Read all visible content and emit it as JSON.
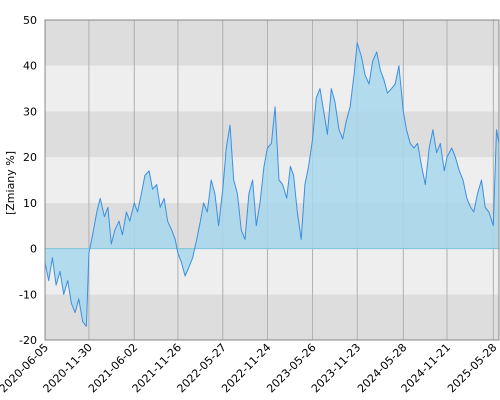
{
  "chart_data": {
    "type": "area",
    "ylabel": "[Zmiany %]",
    "ylim": [
      -20,
      50
    ],
    "yticks": [
      50,
      40,
      30,
      20,
      10,
      0,
      -10,
      -20
    ],
    "xticks": [
      "2020-06-05",
      "2020-11-30",
      "2021-06-02",
      "2021-11-26",
      "2022-05-27",
      "2022-11-24",
      "2023-05-26",
      "2023-11-23",
      "2024-05-28",
      "2024-11-21",
      "2025-05-28"
    ],
    "grid": true,
    "colors": {
      "line": "#3d8fe0",
      "fill": "#a7d8ec",
      "band_light": "#eeeeee",
      "band_dark": "#dddddd",
      "grid": "#b0b0b0"
    },
    "series": [
      {
        "x": [
          "2020-06-05",
          "2020-06-20",
          "2020-07-05",
          "2020-07-20",
          "2020-08-05",
          "2020-08-20",
          "2020-09-05",
          "2020-09-20",
          "2020-10-05",
          "2020-10-20",
          "2020-11-05",
          "2020-11-20",
          "2020-11-30",
          "2020-12-15",
          "2021-01-01",
          "2021-01-15",
          "2021-02-01",
          "2021-02-15",
          "2021-03-01",
          "2021-03-15",
          "2021-04-01",
          "2021-04-15",
          "2021-05-01",
          "2021-05-15",
          "2021-06-02",
          "2021-06-15",
          "2021-07-01",
          "2021-07-15",
          "2021-08-01",
          "2021-08-15",
          "2021-09-01",
          "2021-09-15",
          "2021-10-01",
          "2021-10-15",
          "2021-11-01",
          "2021-11-15",
          "2021-11-26",
          "2021-12-10",
          "2021-12-25",
          "2022-01-10",
          "2022-01-25",
          "2022-02-10",
          "2022-02-25",
          "2022-03-10",
          "2022-03-25",
          "2022-04-10",
          "2022-04-25",
          "2022-05-10",
          "2022-05-27",
          "2022-06-10",
          "2022-06-25",
          "2022-07-10",
          "2022-07-25",
          "2022-08-10",
          "2022-08-25",
          "2022-09-10",
          "2022-09-25",
          "2022-10-10",
          "2022-10-25",
          "2022-11-10",
          "2022-11-24",
          "2022-12-10",
          "2022-12-25",
          "2023-01-10",
          "2023-01-25",
          "2023-02-10",
          "2023-02-25",
          "2023-03-10",
          "2023-03-25",
          "2023-04-10",
          "2023-04-25",
          "2023-05-10",
          "2023-05-26",
          "2023-06-10",
          "2023-06-25",
          "2023-07-10",
          "2023-07-25",
          "2023-08-10",
          "2023-08-25",
          "2023-09-10",
          "2023-09-25",
          "2023-10-10",
          "2023-10-25",
          "2023-11-10",
          "2023-11-23",
          "2023-12-10",
          "2023-12-25",
          "2024-01-10",
          "2024-01-25",
          "2024-02-10",
          "2024-02-25",
          "2024-03-10",
          "2024-03-25",
          "2024-04-10",
          "2024-04-25",
          "2024-05-10",
          "2024-05-28",
          "2024-06-10",
          "2024-06-25",
          "2024-07-10",
          "2024-07-25",
          "2024-08-10",
          "2024-08-25",
          "2024-09-10",
          "2024-09-25",
          "2024-10-10",
          "2024-10-25",
          "2024-11-10",
          "2024-11-21",
          "2024-12-10",
          "2024-12-25",
          "2025-01-10",
          "2025-01-25",
          "2025-02-10",
          "2025-02-25",
          "2025-03-10",
          "2025-03-25",
          "2025-04-10",
          "2025-04-25",
          "2025-05-10",
          "2025-05-28",
          "2025-06-10",
          "2025-06-20"
        ],
        "y": [
          -3,
          -7,
          -2,
          -8,
          -5,
          -10,
          -7,
          -12,
          -14,
          -11,
          -16,
          -17,
          -1,
          3,
          8,
          11,
          7,
          9,
          1,
          4,
          6,
          3,
          8,
          6,
          10,
          8,
          12,
          16,
          17,
          13,
          14,
          9,
          11,
          6,
          4,
          2,
          -1,
          -3,
          -6,
          -4,
          -2,
          2,
          6,
          10,
          8,
          15,
          12,
          5,
          13,
          22,
          27,
          15,
          12,
          4,
          2,
          12,
          15,
          5,
          10,
          18,
          22,
          23,
          31,
          15,
          14,
          11,
          18,
          16,
          8,
          2,
          14,
          18,
          24,
          33,
          35,
          30,
          25,
          35,
          32,
          26,
          24,
          28,
          31,
          38,
          45,
          42,
          38,
          36,
          41,
          43,
          39,
          37,
          34,
          35,
          36,
          40,
          30,
          26,
          23,
          22,
          23,
          18,
          14,
          22,
          26,
          21,
          23,
          17,
          20,
          22,
          20,
          17,
          15,
          11,
          9,
          8,
          12,
          15,
          9,
          8,
          5,
          26,
          23
        ]
      }
    ]
  }
}
